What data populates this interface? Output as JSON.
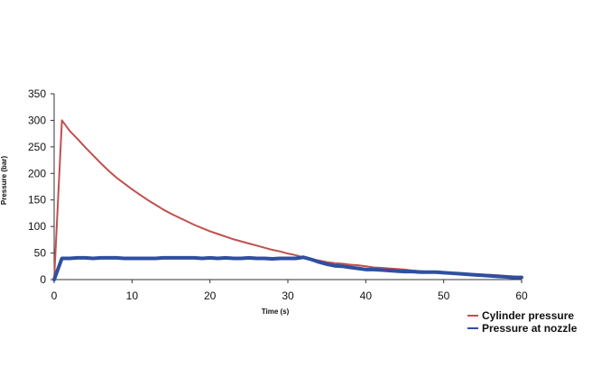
{
  "chart_data": {
    "type": "line",
    "xlabel": "Time (s)",
    "ylabel": "Pressure (bar)",
    "xlim": [
      0,
      60
    ],
    "ylim": [
      0,
      350
    ],
    "xticks": [
      0,
      10,
      20,
      30,
      40,
      50,
      60
    ],
    "yticks": [
      0,
      50,
      100,
      150,
      200,
      250,
      300,
      350
    ],
    "grid": false,
    "legend_position": "bottom-right",
    "series": [
      {
        "name": "Cylinder pressure",
        "color": "#c0504d",
        "x": [
          0,
          1,
          2,
          3,
          4,
          5,
          6,
          7,
          8,
          9,
          10,
          11,
          12,
          13,
          14,
          15,
          16,
          17,
          18,
          19,
          20,
          21,
          22,
          23,
          24,
          25,
          26,
          27,
          28,
          29,
          30,
          31,
          32,
          33,
          34,
          35,
          36,
          37,
          38,
          39,
          40,
          41,
          42,
          43,
          44,
          45,
          46,
          47,
          48,
          49,
          50,
          51,
          52,
          53,
          54,
          55,
          56,
          57,
          58,
          59,
          60
        ],
        "values": [
          0,
          300,
          280,
          265,
          249,
          234,
          219,
          205,
          192,
          181,
          170,
          160,
          150,
          141,
          132,
          124,
          117,
          110,
          103,
          97,
          91,
          86,
          81,
          76,
          72,
          68,
          64,
          60,
          56,
          53,
          49,
          46,
          42,
          39,
          36,
          33,
          31,
          30,
          28,
          27,
          25,
          23,
          22,
          21,
          20,
          19,
          17,
          16,
          15,
          14,
          13,
          12,
          12,
          11,
          10,
          9,
          9,
          8,
          7,
          6,
          5
        ]
      },
      {
        "name": "Pressure at nozzle",
        "color": "#2f4fa0",
        "x": [
          0,
          1,
          2,
          3,
          4,
          5,
          6,
          7,
          8,
          9,
          10,
          11,
          12,
          13,
          14,
          15,
          16,
          17,
          18,
          19,
          20,
          21,
          22,
          23,
          24,
          25,
          26,
          27,
          28,
          29,
          30,
          31,
          32,
          33,
          34,
          35,
          36,
          37,
          38,
          39,
          40,
          41,
          42,
          43,
          44,
          45,
          46,
          47,
          48,
          49,
          50,
          51,
          52,
          53,
          54,
          55,
          56,
          57,
          58,
          59,
          60
        ],
        "values": [
          0,
          40,
          40,
          41,
          41,
          40,
          41,
          41,
          41,
          40,
          40,
          40,
          40,
          40,
          41,
          41,
          41,
          41,
          41,
          40,
          41,
          40,
          41,
          40,
          40,
          41,
          40,
          40,
          39,
          40,
          40,
          40,
          42,
          38,
          33,
          29,
          26,
          25,
          23,
          21,
          19,
          19,
          18,
          17,
          16,
          15,
          15,
          14,
          14,
          14,
          13,
          12,
          11,
          10,
          9,
          8,
          7,
          6,
          5,
          4,
          4
        ]
      }
    ]
  }
}
